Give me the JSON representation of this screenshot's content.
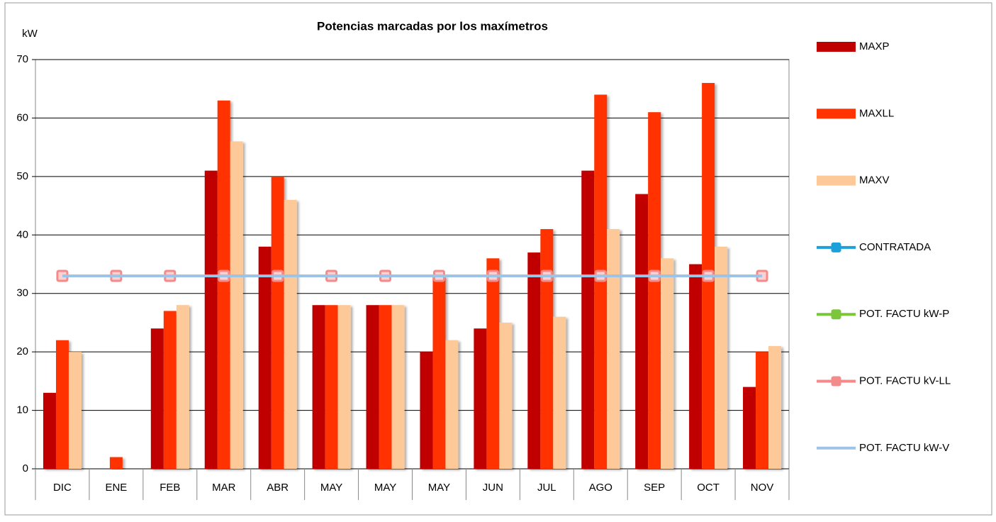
{
  "chart_data": {
    "type": "bar",
    "title": "Potencias marcadas por los maxímetros",
    "y_label": "kW",
    "categories": [
      "DIC",
      "ENE",
      "FEB",
      "MAR",
      "ABR",
      "MAY",
      "MAY",
      "MAY",
      "JUN",
      "JUL",
      "AGO",
      "SEP",
      "OCT",
      "NOV"
    ],
    "ylim": [
      0,
      70
    ],
    "yticks": [
      0,
      10,
      20,
      30,
      40,
      50,
      60,
      70
    ],
    "grid": true,
    "legend": "right",
    "series": [
      {
        "name": "MAXP",
        "type": "bar",
        "color": "#c00000",
        "values": [
          13,
          0,
          24,
          51,
          38,
          28,
          28,
          20,
          24,
          37,
          51,
          47,
          35,
          14
        ]
      },
      {
        "name": "MAXLL",
        "type": "bar",
        "color": "#ff3300",
        "values": [
          22,
          2,
          27,
          63,
          50,
          28,
          28,
          33,
          36,
          41,
          64,
          61,
          66,
          20
        ]
      },
      {
        "name": "MAXV",
        "type": "bar",
        "color": "#fdc998",
        "values": [
          20,
          0,
          28,
          56,
          46,
          28,
          28,
          22,
          25,
          26,
          41,
          36,
          38,
          21
        ]
      },
      {
        "name": "CONTRATADA",
        "type": "line",
        "color": "#1ca0dc",
        "values": [
          null,
          null,
          null,
          null,
          null,
          null,
          null,
          null,
          null,
          null,
          null,
          null,
          null,
          null
        ]
      },
      {
        "name": "POT. FACTU kW-P",
        "type": "line",
        "color": "#7cc63a",
        "values": [
          null,
          null,
          null,
          null,
          null,
          null,
          null,
          null,
          null,
          null,
          null,
          null,
          null,
          null
        ]
      },
      {
        "name": "POT. FACTU kV-LL",
        "type": "line",
        "color": "#f48a8a",
        "values": [
          33,
          33,
          33,
          33,
          33,
          33,
          33,
          33,
          33,
          33,
          33,
          33,
          33,
          33
        ]
      },
      {
        "name": "POT. FACTU kW-V",
        "type": "line",
        "color": "#9dc3e6",
        "values": [
          33,
          33,
          33,
          33,
          33,
          33,
          33,
          33,
          33,
          33,
          33,
          33,
          33,
          33
        ]
      }
    ]
  }
}
